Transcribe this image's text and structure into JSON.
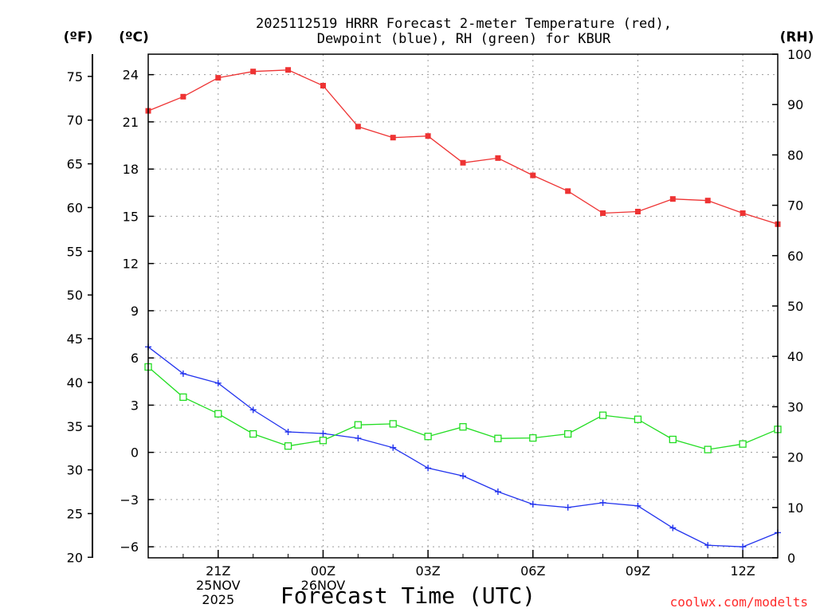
{
  "chart_data": {
    "type": "line",
    "title": "2025112519 HRRR Forecast 2-meter Temperature (red),",
    "subtitle": "Dewpoint (blue), RH (green) for KBUR",
    "xlabel": "Forecast Time (UTC)",
    "left_outer_unit": "(ºF)",
    "left_inner_unit": "(ºC)",
    "right_unit": "(RH)",
    "credit": "coolwx.com/modelts",
    "x_hours": [
      19,
      20,
      21,
      22,
      23,
      24,
      25,
      26,
      27,
      28,
      29,
      30,
      31,
      32,
      33,
      34,
      35,
      36,
      37
    ],
    "x_ticks": [
      {
        "hour": 21,
        "lines": [
          "21Z",
          "25NOV",
          "2025"
        ]
      },
      {
        "hour": 24,
        "lines": [
          "00Z",
          "26NOV"
        ]
      },
      {
        "hour": 27,
        "lines": [
          "03Z"
        ]
      },
      {
        "hour": 30,
        "lines": [
          "06Z"
        ]
      },
      {
        "hour": 33,
        "lines": [
          "09Z"
        ]
      },
      {
        "hour": 36,
        "lines": [
          "12Z"
        ]
      }
    ],
    "ylim_c": [
      -6.7,
      25.3
    ],
    "celsius_ticks": [
      24,
      21,
      18,
      15,
      12,
      9,
      6,
      3,
      0,
      -3,
      -6
    ],
    "fahrenheit_ticks": [
      75,
      70,
      65,
      60,
      55,
      50,
      45,
      40,
      35,
      30,
      25,
      20
    ],
    "rh_ticks": [
      100,
      90,
      80,
      70,
      60,
      50,
      40,
      30,
      20,
      10,
      0
    ],
    "series": [
      {
        "name": "2-meter Temperature",
        "unit": "C",
        "color": "#ee3333",
        "marker": "filled-square",
        "values": [
          21.7,
          22.6,
          23.8,
          24.2,
          24.3,
          23.3,
          20.7,
          20.0,
          20.1,
          18.4,
          18.7,
          17.6,
          16.6,
          15.2,
          15.3,
          16.1,
          16.0,
          15.2,
          14.5
        ]
      },
      {
        "name": "Dewpoint",
        "unit": "C",
        "color": "#2233ee",
        "marker": "plus",
        "values": [
          6.7,
          5.0,
          4.4,
          2.7,
          1.3,
          1.2,
          0.9,
          0.3,
          -1.0,
          -1.5,
          -2.5,
          -3.3,
          -3.5,
          -3.2,
          -3.4,
          -4.8,
          -5.9,
          -6.0,
          -5.1
        ]
      },
      {
        "name": "Relative Humidity",
        "unit": "%",
        "color": "#22dd22",
        "marker": "open-square",
        "values": [
          37.9,
          31.9,
          28.6,
          24.6,
          22.2,
          23.3,
          26.4,
          26.6,
          24.1,
          26.0,
          23.7,
          23.8,
          24.6,
          28.3,
          27.5,
          23.5,
          21.5,
          22.6,
          25.5
        ]
      }
    ]
  }
}
